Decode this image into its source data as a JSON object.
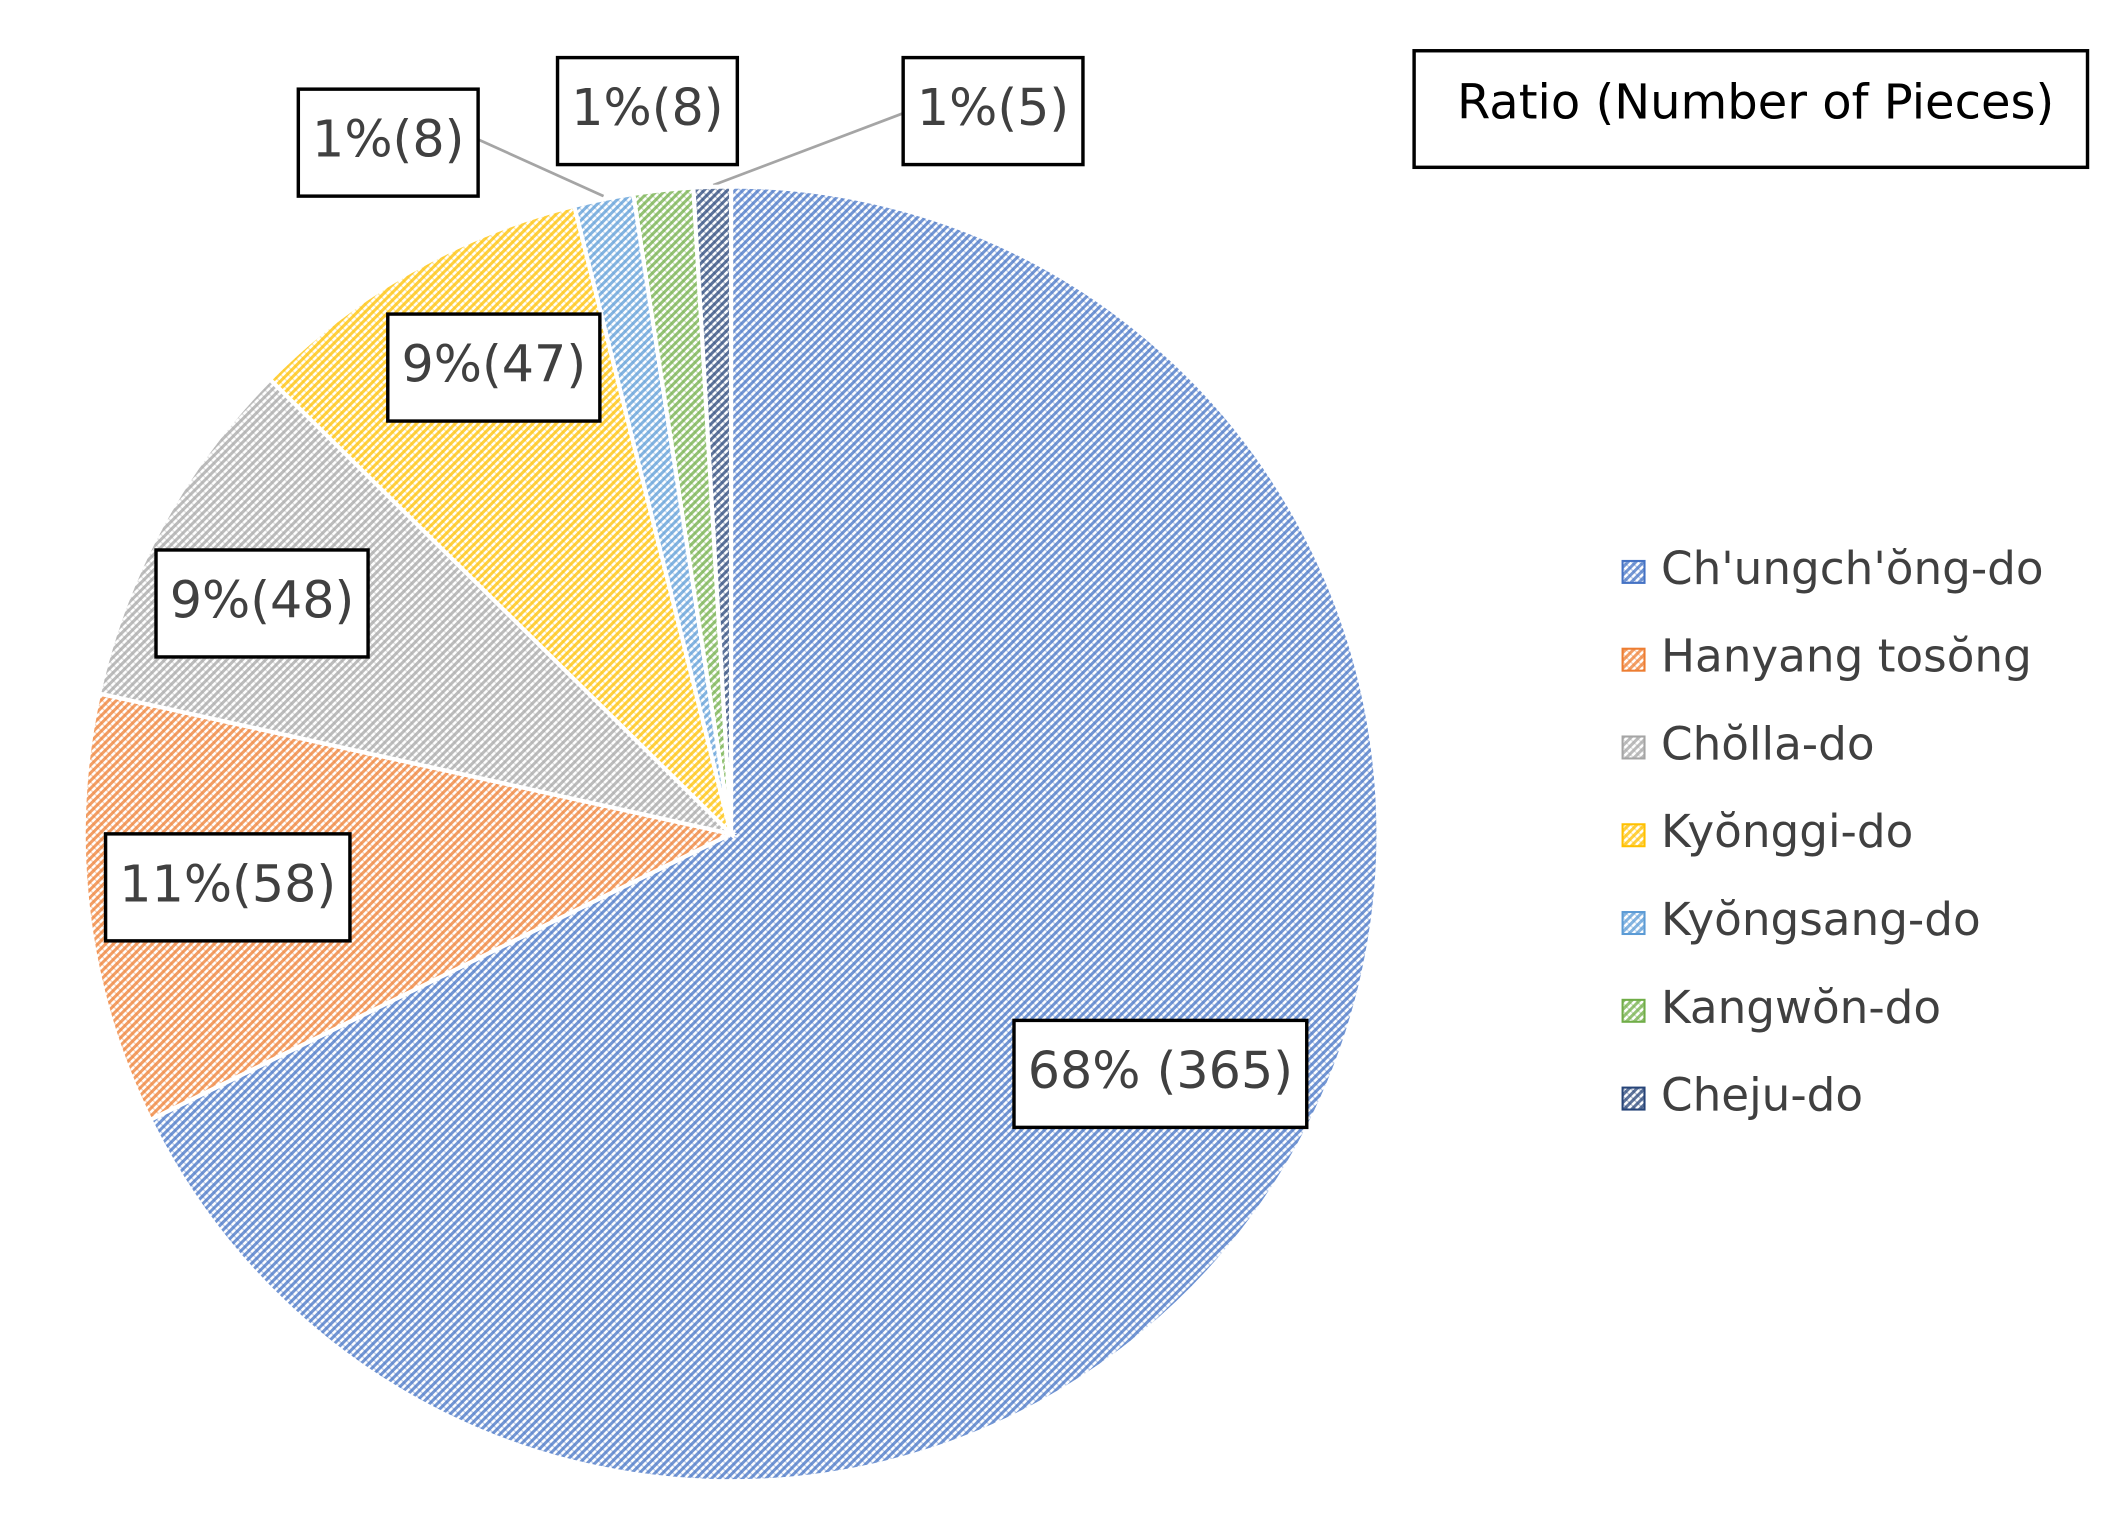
{
  "chart_data": {
    "type": "pie",
    "title": "Ratio (Number of Pieces)",
    "categories": [
      "Ch'ungch'ŏng-do",
      "Hanyang tosŏng",
      "Chŏlla-do",
      "Kyŏnggi-do",
      "Kyŏngsang-do",
      "Kangwŏn-do",
      "Cheju-do"
    ],
    "values": [
      365,
      58,
      48,
      47,
      8,
      8,
      5
    ],
    "value_labels": [
      "68% (365)",
      "11%(58)",
      "9%(48)",
      "9%(47)",
      "1%(8)",
      "1%(8)",
      "1%(5)"
    ],
    "colors": [
      "#4472c4",
      "#ed7d31",
      "#a5a5a5",
      "#ffc000",
      "#5b9bd5",
      "#70ad47",
      "#264478"
    ],
    "legend": "right"
  }
}
